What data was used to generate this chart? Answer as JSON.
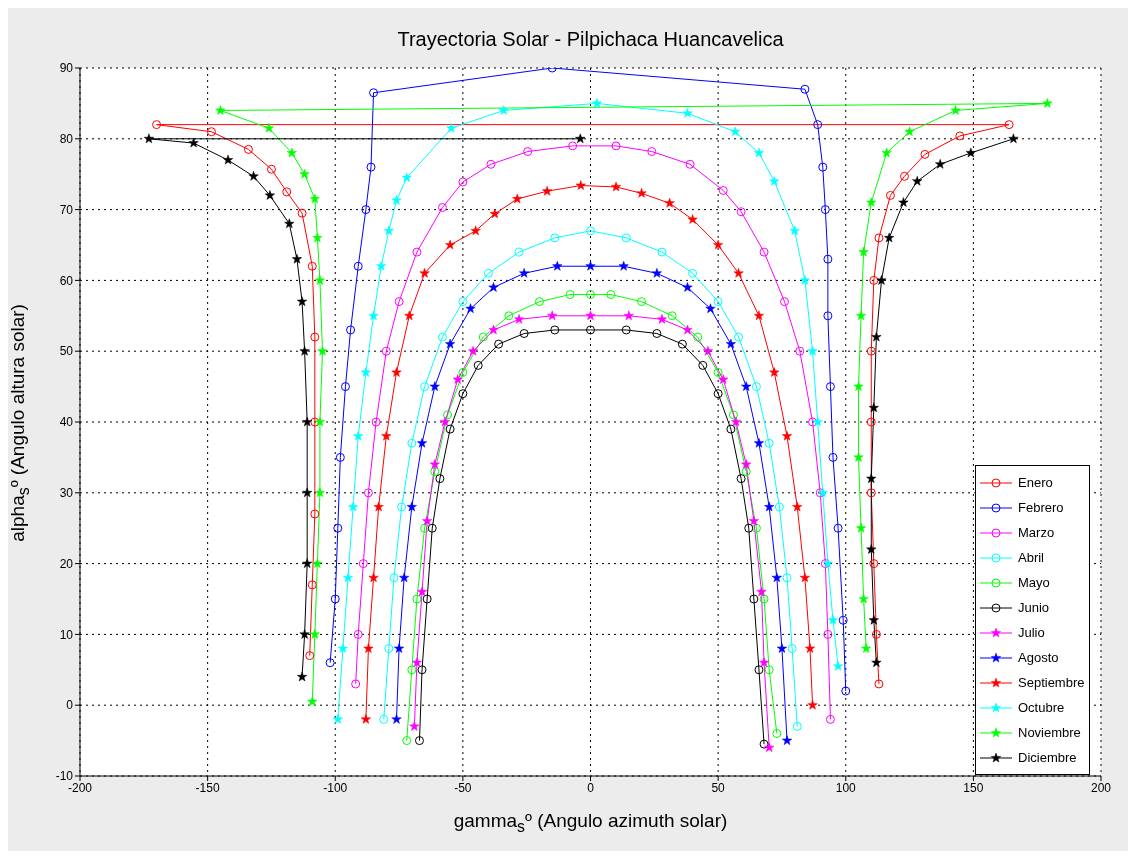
{
  "chart_data": {
    "type": "line",
    "title": "Trayectoria Solar - Pilpichaca Huancavelica",
    "xlabel": "gamma$_{s}$º (Angulo azimuth solar)",
    "ylabel": "alpha$_{s}$º (Angulo altura solar)",
    "xlim": [
      -200,
      200
    ],
    "xticks": [
      -200,
      -150,
      -100,
      -50,
      0,
      50,
      100,
      150,
      200
    ],
    "ylim": [
      -10,
      90
    ],
    "yticks": [
      -10,
      0,
      10,
      20,
      30,
      40,
      50,
      60,
      70,
      80,
      90
    ],
    "grid": true,
    "legend": "bottom right",
    "line_style": "solid",
    "series": [
      {
        "name": "Enero",
        "color": "#ff0000",
        "marker": "circle",
        "x": [
          -110,
          -109,
          -108,
          -108,
          -108,
          -109,
          -113,
          -119,
          -125,
          -134,
          -148.5,
          -170,
          164,
          144.7,
          131,
          123,
          117.5,
          113,
          111,
          110,
          110,
          110,
          111,
          112,
          113
        ],
        "values": [
          7,
          17,
          27,
          40,
          52,
          62,
          69.5,
          72.5,
          75.7,
          78.5,
          81,
          82,
          82,
          80.4,
          77.8,
          74.7,
          72,
          66,
          60,
          50,
          40,
          30,
          20,
          10,
          3
        ]
      },
      {
        "name": "Febrero",
        "color": "#0000ff",
        "marker": "circle",
        "x": [
          -102,
          -100,
          -99,
          -98,
          -96,
          -94,
          -91,
          -88,
          -86,
          -85,
          -15,
          84,
          89,
          91,
          92,
          93,
          93,
          94,
          95,
          97,
          99,
          100
        ],
        "values": [
          6,
          15,
          25,
          35,
          45,
          53,
          62,
          70,
          76,
          86.5,
          90,
          87,
          82,
          76,
          70,
          63,
          55,
          45,
          35,
          25,
          12,
          2
        ]
      },
      {
        "name": "Marzo",
        "color": "#ff00ff",
        "marker": "circle",
        "x": [
          -92,
          -91,
          -89,
          -87,
          -84,
          -80,
          -75,
          -68,
          -58,
          -50,
          -39,
          -24.6,
          -7,
          10,
          24,
          39,
          52,
          59,
          68,
          76,
          82,
          87,
          90,
          92,
          93,
          94
        ],
        "values": [
          3,
          10,
          20,
          30,
          40,
          50,
          57,
          64,
          70.3,
          73.9,
          76.4,
          78.2,
          79,
          79,
          78.2,
          76.4,
          72.7,
          69.7,
          64,
          57,
          50,
          40,
          30,
          20,
          10,
          -2
        ]
      },
      {
        "name": "Abril",
        "color": "#00ffff",
        "marker": "circle",
        "x": [
          -81,
          -79,
          -77,
          -74,
          -70,
          -65,
          -58,
          -50,
          -40,
          -28,
          -14,
          0,
          14,
          28,
          40,
          50,
          58,
          65,
          70,
          74,
          77,
          79,
          81
        ],
        "values": [
          -2,
          8,
          18,
          28,
          37,
          45,
          52,
          57,
          61,
          64,
          66,
          67,
          66,
          64,
          61,
          57,
          52,
          45,
          37,
          28,
          18,
          8,
          -3
        ]
      },
      {
        "name": "Mayo",
        "color": "#00ff00",
        "marker": "circle",
        "x": [
          -72,
          -70,
          -68,
          -65,
          -61,
          -56,
          -50,
          -42,
          -32,
          -20,
          -8,
          0,
          8,
          20,
          32,
          42,
          50,
          56,
          61,
          65,
          68,
          70,
          73
        ],
        "values": [
          -5,
          5,
          15,
          25,
          33,
          41,
          47,
          52,
          55,
          57,
          58,
          58,
          58,
          57,
          55,
          52,
          47,
          41,
          33,
          25,
          15,
          5,
          -4
        ]
      },
      {
        "name": "Junio",
        "color": "#000000",
        "marker": "circle",
        "x": [
          -67,
          -66,
          -64,
          -62,
          -59,
          -55,
          -50,
          -44,
          -36,
          -26,
          -14,
          0,
          14,
          26,
          36,
          44,
          50,
          55,
          59,
          62,
          64,
          66,
          68
        ],
        "values": [
          -5,
          5,
          15,
          25,
          32,
          39,
          44,
          48,
          51,
          52.5,
          53,
          53,
          53,
          52.5,
          51,
          48,
          44,
          39,
          32,
          25,
          15,
          5,
          -5.5
        ]
      },
      {
        "name": "Julio",
        "color": "#ff00ff",
        "marker": "star",
        "x": [
          -69,
          -68,
          -66,
          -64,
          -61,
          -57,
          -52,
          -46,
          -38,
          -28,
          -15,
          0,
          15,
          28,
          38,
          46,
          52,
          57,
          61,
          64,
          67,
          68,
          70
        ],
        "values": [
          -3,
          6,
          16,
          26,
          34,
          40,
          46,
          50,
          53,
          54.5,
          55,
          55,
          55,
          54.5,
          53,
          50,
          46,
          40,
          34,
          26,
          16,
          6,
          -6
        ]
      },
      {
        "name": "Agosto",
        "color": "#0000ff",
        "marker": "star",
        "x": [
          -76,
          -75,
          -73,
          -70,
          -66,
          -61,
          -55,
          -47,
          -38,
          -26,
          -13,
          0,
          13,
          26,
          38,
          47,
          55,
          61,
          66,
          70,
          73,
          75,
          77
        ],
        "values": [
          -2,
          8,
          18,
          28,
          37,
          45,
          51,
          56,
          59,
          61,
          62,
          62,
          62,
          61,
          59,
          56,
          51,
          45,
          37,
          28,
          18,
          8,
          -5
        ]
      },
      {
        "name": "Septiembre",
        "color": "#ff0000",
        "marker": "star",
        "x": [
          -88,
          -87,
          -85,
          -83,
          -80,
          -76,
          -71,
          -65,
          -55,
          -45,
          -37.5,
          -28.7,
          -17,
          -3.8,
          10,
          20,
          31,
          40,
          50,
          58,
          66,
          72,
          77,
          81,
          84,
          86,
          87
        ],
        "values": [
          -2,
          8,
          18,
          28,
          38,
          47,
          55,
          61,
          65,
          67,
          69.4,
          71.5,
          72.6,
          73.4,
          73.2,
          72.3,
          70.9,
          68.6,
          65,
          61,
          55,
          47,
          38,
          28,
          18,
          8,
          0
        ]
      },
      {
        "name": "Octubre",
        "color": "#00ffff",
        "marker": "star",
        "x": [
          -99,
          -97,
          -95,
          -93,
          -91,
          -88,
          -85,
          -82,
          -79,
          -76,
          -72,
          -54.5,
          -34,
          2.5,
          38,
          56.7,
          66,
          72,
          80,
          84,
          87,
          89,
          91,
          93,
          95,
          97
        ],
        "values": [
          -2,
          8,
          18,
          28,
          38,
          47,
          55,
          62,
          67,
          71.3,
          74.5,
          81.5,
          84,
          85,
          83.6,
          81,
          78,
          74,
          67,
          60,
          50,
          40,
          30,
          20,
          12,
          5.5
        ]
      },
      {
        "name": "Noviembre",
        "color": "#00ff00",
        "marker": "star",
        "x": [
          -109,
          -108,
          -107,
          -106,
          -106,
          -105,
          -106,
          -107,
          -108,
          -112,
          -117,
          -126,
          -145,
          179,
          143,
          125,
          116,
          110,
          107,
          106,
          105,
          105,
          106,
          107,
          108
        ],
        "values": [
          0.5,
          10,
          20,
          30,
          40,
          50,
          60,
          66,
          71.5,
          75,
          78,
          81.5,
          84,
          85,
          84,
          81,
          78,
          71,
          64,
          55,
          45,
          35,
          25,
          15,
          8
        ]
      },
      {
        "name": "Diciembre",
        "color": "#000000",
        "marker": "star",
        "x": [
          -113,
          -112,
          -111,
          -111,
          -111,
          -112,
          -113,
          -115,
          -118,
          -125.6,
          -132,
          -142,
          -155.5,
          -173,
          -4,
          80,
          165.7,
          149,
          137,
          128,
          122.6,
          117,
          114,
          112,
          111,
          110,
          110,
          111,
          112
        ],
        "values": [
          4,
          10,
          20,
          30,
          40,
          50,
          57,
          63,
          68,
          72,
          74.7,
          77,
          79.4,
          80,
          80,
          null,
          80,
          78,
          76.4,
          74,
          71,
          66,
          60,
          52,
          42,
          32,
          22,
          12,
          6
        ]
      }
    ]
  }
}
